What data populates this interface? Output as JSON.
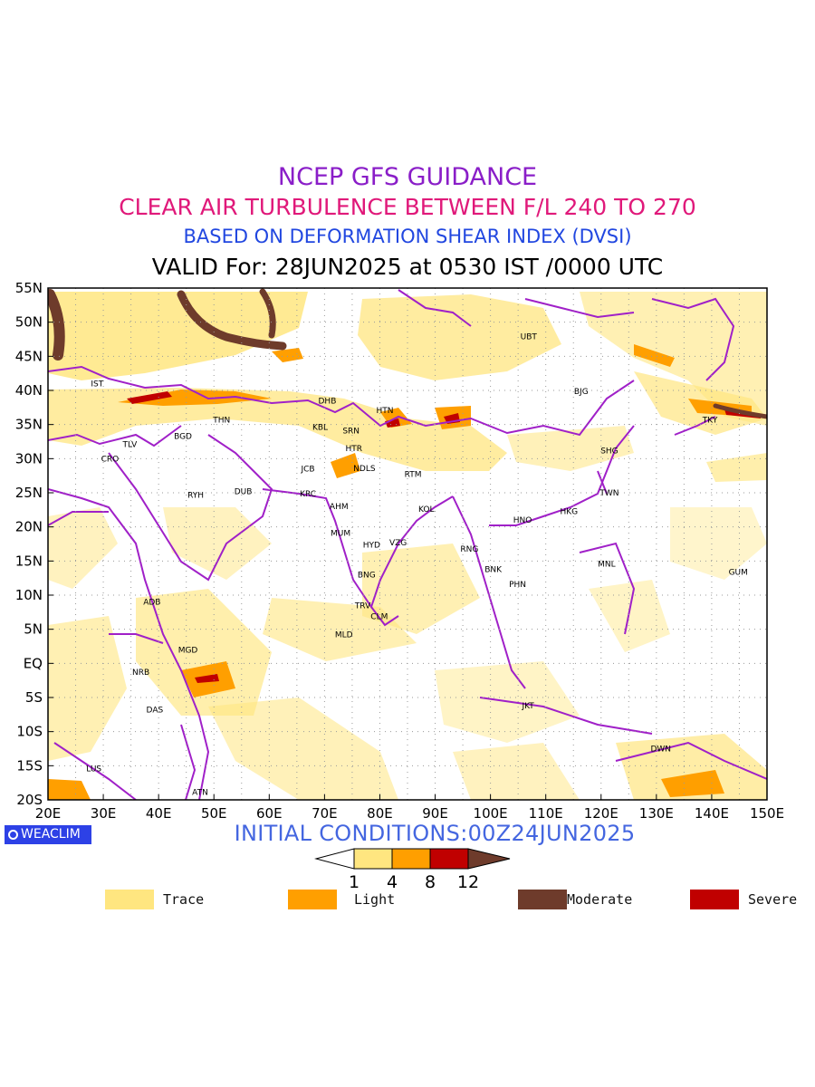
{
  "titles": {
    "line1": "NCEP GFS GUIDANCE",
    "line2": "CLEAR AIR TURBULENCE BETWEEN F/L 240 TO 270",
    "line3": "BASED ON DEFORMATION SHEAR INDEX (DVSI)",
    "line4": "VALID For: 28JUN2025 at 0530 IST /0000 UTC"
  },
  "map": {
    "lon_range": [
      20,
      150
    ],
    "lat_range": [
      -20,
      55
    ],
    "x_ticks": [
      "20E",
      "30E",
      "40E",
      "50E",
      "60E",
      "70E",
      "80E",
      "90E",
      "100E",
      "110E",
      "120E",
      "130E",
      "140E",
      "150E"
    ],
    "y_ticks": [
      "55N",
      "50N",
      "45N",
      "40N",
      "35N",
      "30N",
      "25N",
      "20N",
      "15N",
      "10N",
      "5N",
      "EQ",
      "5S",
      "10S",
      "15S",
      "20S"
    ],
    "grid": "dotted",
    "border_color": "#a020c8",
    "stations": [
      {
        "code": "UBT",
        "lon": 106.9,
        "lat": 47.9
      },
      {
        "code": "IST",
        "lon": 28.9,
        "lat": 41.0
      },
      {
        "code": "BJG",
        "lon": 116.4,
        "lat": 39.9
      },
      {
        "code": "DHB",
        "lon": 70.5,
        "lat": 38.5
      },
      {
        "code": "HTN",
        "lon": 80.9,
        "lat": 37.1
      },
      {
        "code": "THN",
        "lon": 51.4,
        "lat": 35.7
      },
      {
        "code": "KBL",
        "lon": 69.2,
        "lat": 34.6
      },
      {
        "code": "SRN",
        "lon": 74.8,
        "lat": 34.1
      },
      {
        "code": "TKY",
        "lon": 139.7,
        "lat": 35.7
      },
      {
        "code": "TLV",
        "lon": 34.8,
        "lat": 32.1
      },
      {
        "code": "BGD",
        "lon": 44.4,
        "lat": 33.3
      },
      {
        "code": "CRO",
        "lon": 31.2,
        "lat": 30.0
      },
      {
        "code": "HTR",
        "lon": 75.3,
        "lat": 31.5
      },
      {
        "code": "SHG",
        "lon": 121.5,
        "lat": 31.2
      },
      {
        "code": "JCB",
        "lon": 67.0,
        "lat": 28.5
      },
      {
        "code": "NDLS",
        "lon": 77.2,
        "lat": 28.6
      },
      {
        "code": "RTM",
        "lon": 86.0,
        "lat": 27.7
      },
      {
        "code": "RYH",
        "lon": 46.7,
        "lat": 24.7
      },
      {
        "code": "DUB",
        "lon": 55.3,
        "lat": 25.2
      },
      {
        "code": "KRC",
        "lon": 67.0,
        "lat": 24.9
      },
      {
        "code": "TWN",
        "lon": 121.5,
        "lat": 25.0
      },
      {
        "code": "AHM",
        "lon": 72.6,
        "lat": 23.0
      },
      {
        "code": "KOL",
        "lon": 88.4,
        "lat": 22.6
      },
      {
        "code": "HKG",
        "lon": 114.2,
        "lat": 22.3
      },
      {
        "code": "HNO",
        "lon": 105.8,
        "lat": 21.0
      },
      {
        "code": "MUM",
        "lon": 72.9,
        "lat": 19.1
      },
      {
        "code": "HYD",
        "lon": 78.5,
        "lat": 17.4
      },
      {
        "code": "VZG",
        "lon": 83.3,
        "lat": 17.7
      },
      {
        "code": "RNG",
        "lon": 96.2,
        "lat": 16.8
      },
      {
        "code": "MNL",
        "lon": 121.0,
        "lat": 14.6
      },
      {
        "code": "BNK",
        "lon": 100.5,
        "lat": 13.8
      },
      {
        "code": "GUM",
        "lon": 144.8,
        "lat": 13.4
      },
      {
        "code": "BNG",
        "lon": 77.6,
        "lat": 13.0
      },
      {
        "code": "PHN",
        "lon": 104.9,
        "lat": 11.6
      },
      {
        "code": "ADB",
        "lon": 38.8,
        "lat": 9.0
      },
      {
        "code": "TRV",
        "lon": 76.9,
        "lat": 8.5
      },
      {
        "code": "CLM",
        "lon": 79.9,
        "lat": 6.9
      },
      {
        "code": "MLD",
        "lon": 73.5,
        "lat": 4.2
      },
      {
        "code": "MGD",
        "lon": 45.3,
        "lat": 2.0
      },
      {
        "code": "NRB",
        "lon": 36.8,
        "lat": -1.3
      },
      {
        "code": "DAS",
        "lon": 39.3,
        "lat": -6.8
      },
      {
        "code": "JKT",
        "lon": 106.8,
        "lat": -6.2
      },
      {
        "code": "DWN",
        "lon": 130.8,
        "lat": -12.5
      },
      {
        "code": "LUS",
        "lon": 28.3,
        "lat": -15.4
      },
      {
        "code": "ATN",
        "lon": 47.5,
        "lat": -18.9
      }
    ]
  },
  "init_conditions": "INITIAL CONDITIONS:00Z24JUN2025",
  "brand": "WEACLIM",
  "colorbar": {
    "thresholds": [
      "1",
      "4",
      "8",
      "12"
    ],
    "colors": [
      "#ffe680",
      "#ff9f00",
      "#c00000",
      "#6e3b2b"
    ]
  },
  "legend": [
    {
      "label": "Trace",
      "color": "#ffe680"
    },
    {
      "label": "Light",
      "color": "#ff9f00"
    },
    {
      "label": "Moderate",
      "color": "#6e3b2b"
    },
    {
      "label": "Severe",
      "color": "#c00000"
    }
  ]
}
